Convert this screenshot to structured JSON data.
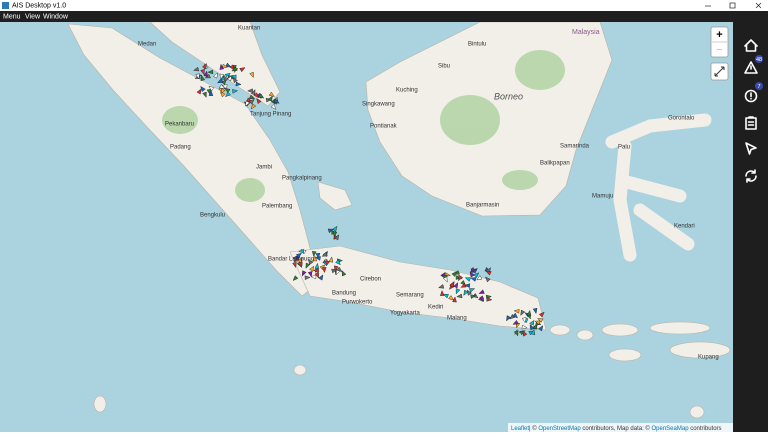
{
  "window": {
    "title": "AIS Desktop v1.0"
  },
  "menu": [
    "Menu",
    "View",
    "Window"
  ],
  "map": {
    "labels": [
      "Medan",
      "Kuantan",
      "Pekanbaru",
      "Tanjung Pinang",
      "Padang",
      "Jambi",
      "Pangkalpinang",
      "Palembang",
      "Bengkulu",
      "Bandar Lampung",
      "Bandung",
      "Cirebon",
      "Semarang",
      "Yogyakarta",
      "Purwokerto",
      "Malang",
      "Kediri",
      "Kuching",
      "Pontianak",
      "Singkawang",
      "Sibu",
      "Bintulu",
      "Samarinda",
      "Balikpapan",
      "Banjarmasin",
      "Palu",
      "Gorontalo",
      "Mamuju",
      "Kendari",
      "Kupang",
      "Malaysia"
    ],
    "region_label": "Borneo",
    "attribution": {
      "leaflet": "Leaflet",
      "osm_prefix": "| © ",
      "osm": "OpenStreetMap",
      "middle": " contributors, Map data: © ",
      "seamap": "OpenSeaMap",
      "suffix": " contributors"
    }
  },
  "zoom": {
    "in": "+",
    "out": "−"
  },
  "sidebar": {
    "alerts_badge": 48,
    "warnings_badge": 7
  }
}
